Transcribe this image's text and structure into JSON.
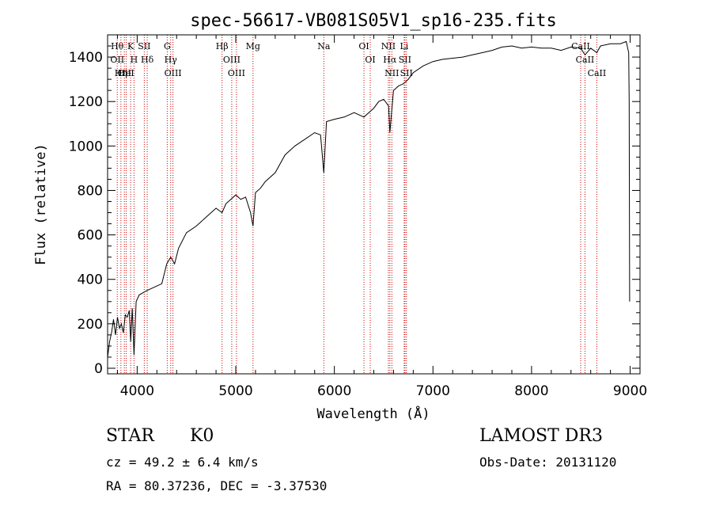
{
  "chart_data": {
    "type": "line",
    "title": "spec-56617-VB081S05V1_sp16-235.fits",
    "xlabel": "Wavelength (Å)",
    "ylabel": "Flux (relative)",
    "xlim": [
      3700,
      9100
    ],
    "ylim": [
      -25,
      1500
    ],
    "xticks": [
      4000,
      5000,
      6000,
      7000,
      8000,
      9000
    ],
    "yticks": [
      0,
      200,
      400,
      600,
      800,
      1000,
      1200,
      1400
    ],
    "series": [
      {
        "name": "flux",
        "x": [
          3700,
          3720,
          3740,
          3760,
          3780,
          3800,
          3820,
          3840,
          3860,
          3880,
          3900,
          3920,
          3934,
          3950,
          3968,
          3990,
          4020,
          4060,
          4100,
          4150,
          4200,
          4250,
          4300,
          4340,
          4380,
          4420,
          4500,
          4600,
          4700,
          4800,
          4861,
          4900,
          4950,
          5000,
          5050,
          5100,
          5150,
          5175,
          5200,
          5250,
          5300,
          5400,
          5500,
          5600,
          5700,
          5800,
          5860,
          5893,
          5920,
          6000,
          6100,
          6200,
          6300,
          6400,
          6450,
          6500,
          6550,
          6563,
          6600,
          6650,
          6700,
          6750,
          6800,
          6900,
          7000,
          7100,
          7200,
          7300,
          7400,
          7500,
          7600,
          7700,
          7800,
          7900,
          8000,
          8100,
          8200,
          8300,
          8400,
          8498,
          8542,
          8600,
          8662,
          8700,
          8800,
          8900,
          8960,
          8985,
          8990,
          8995
        ],
        "y": [
          50,
          120,
          160,
          220,
          150,
          230,
          180,
          200,
          160,
          240,
          230,
          260,
          120,
          270,
          60,
          300,
          330,
          340,
          350,
          360,
          370,
          380,
          470,
          500,
          470,
          540,
          610,
          640,
          680,
          720,
          700,
          740,
          760,
          780,
          760,
          770,
          700,
          640,
          790,
          810,
          840,
          880,
          960,
          1000,
          1030,
          1060,
          1050,
          880,
          1110,
          1120,
          1130,
          1150,
          1130,
          1170,
          1200,
          1210,
          1180,
          1060,
          1250,
          1270,
          1280,
          1300,
          1330,
          1360,
          1380,
          1390,
          1395,
          1400,
          1410,
          1420,
          1430,
          1445,
          1450,
          1440,
          1445,
          1440,
          1440,
          1430,
          1445,
          1440,
          1410,
          1440,
          1420,
          1450,
          1460,
          1460,
          1470,
          1420,
          1200,
          300
        ]
      }
    ],
    "lines": [
      {
        "x": 3798,
        "labels": [
          "Hθ",
          "OII"
        ]
      },
      {
        "x": 3835,
        "labels": [
          "Hη"
        ]
      },
      {
        "x": 3870,
        "labels": [
          "OII"
        ]
      },
      {
        "x": 3889,
        "labels": [
          "HeI"
        ]
      },
      {
        "x": 3934,
        "labels": [
          "K"
        ]
      },
      {
        "x": 3968,
        "labels": [
          "H"
        ]
      },
      {
        "x": 4072,
        "labels": [
          "SII"
        ]
      },
      {
        "x": 4102,
        "labels": [
          "Hδ"
        ]
      },
      {
        "x": 4305,
        "labels": [
          "G"
        ]
      },
      {
        "x": 4340,
        "labels": [
          "Hγ"
        ]
      },
      {
        "x": 4363,
        "labels": [
          "OIII"
        ]
      },
      {
        "x": 4861,
        "labels": [
          "Hβ"
        ]
      },
      {
        "x": 4959,
        "labels": [
          "OIII"
        ]
      },
      {
        "x": 5007,
        "labels": [
          "OIII"
        ]
      },
      {
        "x": 5175,
        "labels": [
          "Mg"
        ]
      },
      {
        "x": 5893,
        "labels": [
          "Na"
        ]
      },
      {
        "x": 6300,
        "labels": [
          "OI"
        ]
      },
      {
        "x": 6364,
        "labels": [
          "OI"
        ]
      },
      {
        "x": 6548,
        "labels": [
          "NII"
        ]
      },
      {
        "x": 6563,
        "labels": [
          "Hα"
        ]
      },
      {
        "x": 6583,
        "labels": [
          "NII"
        ]
      },
      {
        "x": 6708,
        "labels": [
          "Li"
        ]
      },
      {
        "x": 6716,
        "labels": [
          "SII"
        ]
      },
      {
        "x": 6731,
        "labels": [
          "SII"
        ]
      },
      {
        "x": 8498,
        "labels": [
          "CaII"
        ]
      },
      {
        "x": 8542,
        "labels": [
          "CaII"
        ]
      },
      {
        "x": 8662,
        "labels": [
          "CaII"
        ]
      }
    ],
    "grid": false,
    "line_color": "#000000",
    "marker_color": "#cc0000"
  },
  "info": {
    "class_text": "STAR",
    "subclass_text": "K0",
    "survey_text": "LAMOST DR3",
    "cz_text": "cz = 49.2 ± 6.4 km/s",
    "obsdate_text": "Obs-Date: 20131120",
    "coords_text": "RA =  80.37236, DEC =  -3.37530"
  }
}
